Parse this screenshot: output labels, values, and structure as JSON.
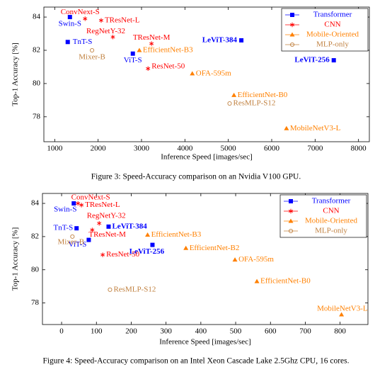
{
  "chart_data": [
    {
      "type": "scatter",
      "xlabel": "Inference Speed [images/sec]",
      "ylabel": "Top-1 Accuracy [%]",
      "xlim": [
        750,
        8250
      ],
      "ylim": [
        76.5,
        84.6
      ],
      "xticks": [
        1000,
        2000,
        3000,
        4000,
        5000,
        6000,
        7000,
        8000
      ],
      "yticks": [
        78,
        80,
        82,
        84
      ],
      "legend": "upper right",
      "caption": "Figure 3: Speed-Accuracy comparison on an Nvidia V100 GPU.",
      "series": [
        {
          "name": "Transformer",
          "color": "#0000ff",
          "marker": "square",
          "labels": [
            "Swin-S",
            "TnT-S",
            "ViT-S",
            "LeViT-384",
            "LeViT-256"
          ],
          "x": [
            1350,
            1300,
            2800,
            5300,
            7430
          ],
          "y": [
            84.0,
            82.5,
            81.8,
            82.6,
            81.4
          ]
        },
        {
          "name": "CNN",
          "color": "#ff0000",
          "marker": "star",
          "labels": [
            "ConvNext-S",
            "TResNet-L",
            "RegNetY-32",
            "TResNet-M",
            "ResNet-50"
          ],
          "x": [
            1700,
            2070,
            2340,
            3230,
            3150
          ],
          "y": [
            83.9,
            83.8,
            82.8,
            82.4,
            80.9
          ]
        },
        {
          "name": "Mobile-Oriented",
          "color": "#ff8000",
          "marker": "triangle",
          "labels": [
            "EfficientNet-B3",
            "OFA-595m",
            "EfficientNet-B0",
            "MobileNetV3-L"
          ],
          "x": [
            2950,
            4170,
            5130,
            6340
          ],
          "y": [
            82.0,
            80.6,
            79.3,
            77.3
          ]
        },
        {
          "name": "MLP-only",
          "color": "#c0803f",
          "marker": "circle",
          "labels": [
            "Mixer-B",
            "ResMLP-S12"
          ],
          "x": [
            1860,
            5030
          ],
          "y": [
            82.0,
            78.8
          ]
        }
      ]
    },
    {
      "type": "scatter",
      "xlabel": "Inference Speed [images/sec]",
      "ylabel": "Top-1 Accuracy [%]",
      "xlim": [
        -55,
        880
      ],
      "ylim": [
        76.7,
        84.6
      ],
      "xticks": [
        0,
        100,
        200,
        300,
        400,
        500,
        600,
        700,
        800
      ],
      "yticks": [
        78,
        80,
        82,
        84
      ],
      "legend": "upper right",
      "caption": "Figure 4: Speed-Accuracy comparison on an Intel Xeon Cascade Lake 2.5Ghz CPU, 16 cores.",
      "series": [
        {
          "name": "Transformer",
          "color": "#0000ff",
          "marker": "square",
          "labels": [
            "Swin-S",
            "TnT-S",
            "ViT-S",
            "LeViT-384",
            "LeViT-256"
          ],
          "x": [
            35,
            43,
            78,
            135,
            261
          ],
          "y": [
            84.0,
            82.5,
            81.8,
            82.6,
            81.5
          ]
        },
        {
          "name": "CNN",
          "color": "#ff0000",
          "marker": "star",
          "labels": [
            "ConvNext-S",
            "TResNet-L",
            "RegNetY-32",
            "TResNet-M",
            "ResNet-50"
          ],
          "x": [
            47,
            57,
            108,
            88,
            118
          ],
          "y": [
            84.0,
            83.9,
            82.8,
            82.4,
            80.9
          ]
        },
        {
          "name": "Mobile-Oriented",
          "color": "#ff8000",
          "marker": "triangle",
          "labels": [
            "EfficientNet-B3",
            "EfficientNet-B2",
            "OFA-595m",
            "EfficientNet-B0",
            "MobileNetV3-L"
          ],
          "x": [
            247,
            357,
            498,
            561,
            804
          ],
          "y": [
            82.1,
            81.3,
            80.6,
            79.3,
            77.3
          ]
        },
        {
          "name": "MLP-only",
          "color": "#c0803f",
          "marker": "circle",
          "labels": [
            "Mixer-B",
            "ResMLP-S12"
          ],
          "x": [
            31,
            139
          ],
          "y": [
            82.0,
            78.8
          ]
        }
      ]
    }
  ]
}
